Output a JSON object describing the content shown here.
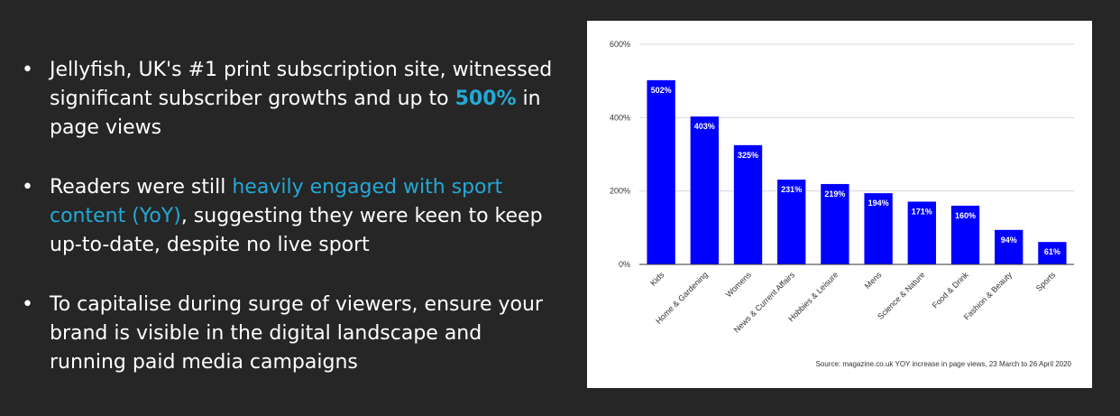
{
  "bullets": [
    {
      "dot": "•",
      "parts": [
        {
          "text": "Jellyfish, UK's #1 print subscription site, witnessed significant subscriber growths and up to ",
          "style": "plain"
        },
        {
          "text": "500%",
          "style": "highlight-bold"
        },
        {
          "text": " in page views",
          "style": "plain"
        }
      ]
    },
    {
      "dot": "•",
      "parts": [
        {
          "text": "Readers were still ",
          "style": "plain"
        },
        {
          "text": "heavily engaged with sport content (YoY)",
          "style": "highlight"
        },
        {
          "text": ", suggesting they were keen to keep up-to-date, despite no live sport",
          "style": "plain"
        }
      ]
    },
    {
      "dot": "•",
      "parts": [
        {
          "text": "To capitalise during surge of viewers, ensure your brand is visible in the digital landscape and running paid media campaigns",
          "style": "plain"
        }
      ]
    }
  ],
  "colors": {
    "background": "#262626",
    "text": "#ffffff",
    "highlight": "#23a9d6",
    "bar": "#0000ff",
    "grid": "#d9d9d9"
  },
  "chart_data": {
    "type": "bar",
    "title": "",
    "xlabel": "",
    "ylabel": "",
    "categories": [
      "Kids",
      "Home & Gardening",
      "Womens",
      "News & Current Affairs",
      "Hobbies & Leisure",
      "Mens",
      "Science & Nature",
      "Food & Drink",
      "Fashion & Beauty",
      "Sports"
    ],
    "values": [
      502,
      403,
      325,
      231,
      219,
      194,
      171,
      160,
      94,
      61
    ],
    "data_labels": [
      "502%",
      "403%",
      "325%",
      "231%",
      "219%",
      "194%",
      "171%",
      "160%",
      "94%",
      "61%"
    ],
    "ylim": [
      0,
      600
    ],
    "yticks": [
      0,
      200,
      400,
      600
    ],
    "ytick_labels": [
      "0%",
      "200%",
      "400%",
      "600%"
    ],
    "grid": true,
    "legend": "none",
    "source": "Source: magazine.co.uk YOY increase in page views, 23 March to 26 April 2020"
  }
}
